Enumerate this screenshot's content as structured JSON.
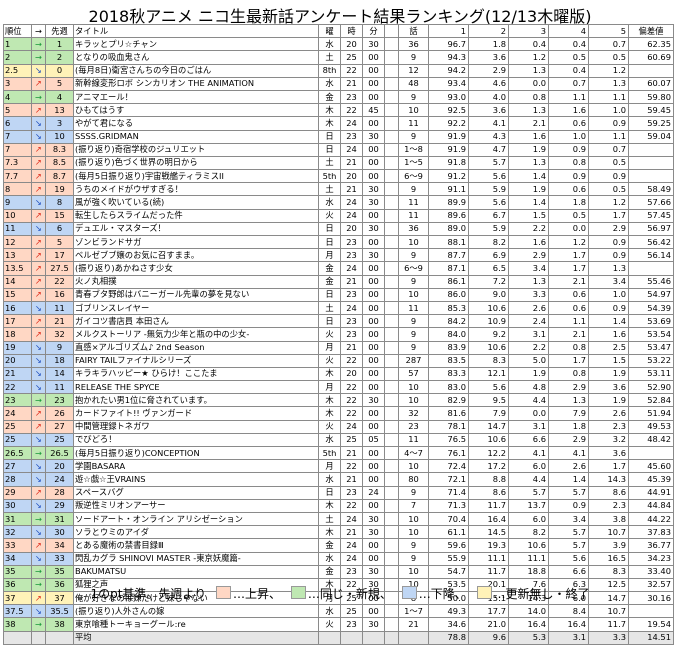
{
  "title": "2018秋アニメ ニコ生最新話アンケート結果ランキング(12/13木曜版)",
  "headers": [
    "順位",
    "→",
    "先週",
    "タイトル",
    "曜",
    "時",
    "分",
    "",
    "話",
    "1",
    "2",
    "3",
    "4",
    "5",
    "偏差値"
  ],
  "rows": [
    [
      "1",
      "→",
      "1",
      "キラッとプリ☆チャン",
      "水",
      "20",
      "30",
      "",
      "36",
      "96.7",
      "1.8",
      "0.4",
      "0.4",
      "0.7",
      "62.35",
      "same"
    ],
    [
      "2",
      "→",
      "2",
      "となりの吸血鬼さん",
      "土",
      "25",
      "00",
      "",
      "9",
      "94.3",
      "3.6",
      "1.2",
      "0.5",
      "0.5",
      "60.69",
      "same"
    ],
    [
      "2.5",
      "↘",
      "0",
      "(毎月8日)衛宮さんちの今日のごはん",
      "8th",
      "22",
      "00",
      "",
      "12",
      "94.2",
      "2.9",
      "1.3",
      "0.4",
      "1.2",
      "",
      "end"
    ],
    [
      "3",
      "↗",
      "5",
      "新幹線変形ロボ シンカリオン THE ANIMATION",
      "水",
      "21",
      "00",
      "",
      "48",
      "93.4",
      "4.6",
      "0.0",
      "0.7",
      "1.3",
      "60.07",
      "up"
    ],
    [
      "4",
      "→",
      "4",
      "アニマエール！",
      "金",
      "23",
      "00",
      "",
      "9",
      "93.0",
      "4.0",
      "0.8",
      "1.1",
      "1.1",
      "59.80",
      "same"
    ],
    [
      "5",
      "↗",
      "13",
      "ひもてはうす",
      "木",
      "22",
      "45",
      "",
      "10",
      "92.5",
      "3.6",
      "1.3",
      "1.6",
      "1.0",
      "59.45",
      "up"
    ],
    [
      "6",
      "↘",
      "3",
      "やがて君になる",
      "木",
      "24",
      "00",
      "",
      "11",
      "92.2",
      "4.1",
      "2.1",
      "0.6",
      "0.9",
      "59.25",
      "down"
    ],
    [
      "7",
      "↘",
      "10",
      "SSSS.GRIDMAN",
      "日",
      "23",
      "30",
      "",
      "9",
      "91.9",
      "4.3",
      "1.6",
      "1.0",
      "1.1",
      "59.04",
      "down"
    ],
    [
      "7",
      "↗",
      "8.3",
      "(振り返り)奇宿学校のジュリエット",
      "日",
      "24",
      "00",
      "",
      "1〜8",
      "91.9",
      "4.7",
      "1.9",
      "0.9",
      "0.7",
      "",
      "up"
    ],
    [
      "7.3",
      "↗",
      "8.5",
      "(振り返り)色づく世界の明日から",
      "土",
      "21",
      "00",
      "",
      "1〜5",
      "91.8",
      "5.7",
      "1.3",
      "0.8",
      "0.5",
      "",
      "up"
    ],
    [
      "7.7",
      "↗",
      "8.7",
      "(毎月5日振り返り)宇宙戦艦ティラミスII",
      "5th",
      "20",
      "00",
      "",
      "6〜9",
      "91.2",
      "5.6",
      "1.4",
      "0.9",
      "0.9",
      "",
      "up"
    ],
    [
      "8",
      "↗",
      "19",
      "うちのメイドがウザすぎる！",
      "土",
      "21",
      "30",
      "",
      "9",
      "91.1",
      "5.9",
      "1.9",
      "0.6",
      "0.5",
      "58.49",
      "up"
    ],
    [
      "9",
      "↘",
      "8",
      "風が強く吹いている(続)",
      "水",
      "24",
      "30",
      "",
      "11",
      "89.9",
      "5.6",
      "1.4",
      "1.8",
      "1.2",
      "57.66",
      "down"
    ],
    [
      "10",
      "↗",
      "15",
      "転生したらスライムだった件",
      "火",
      "24",
      "00",
      "",
      "11",
      "89.6",
      "6.7",
      "1.5",
      "0.5",
      "1.7",
      "57.45",
      "up"
    ],
    [
      "11",
      "↘",
      "6",
      "デュエル・マスターズ！",
      "日",
      "20",
      "30",
      "",
      "36",
      "89.0",
      "5.9",
      "2.2",
      "0.0",
      "2.9",
      "56.97",
      "down"
    ],
    [
      "12",
      "↗",
      "5",
      "ゾンビランドサガ",
      "日",
      "23",
      "00",
      "",
      "10",
      "88.1",
      "8.2",
      "1.6",
      "1.2",
      "0.9",
      "56.42",
      "up"
    ],
    [
      "13",
      "↗",
      "17",
      "ベルゼブブ嬢のお気に召すまま。",
      "月",
      "23",
      "30",
      "",
      "9",
      "87.7",
      "6.9",
      "2.9",
      "1.7",
      "0.9",
      "56.14",
      "up"
    ],
    [
      "13.5",
      "↗",
      "27.5",
      "(振り返り)あかねさす少女",
      "金",
      "24",
      "00",
      "",
      "6〜9",
      "87.1",
      "6.5",
      "3.4",
      "1.7",
      "1.3",
      "",
      "up"
    ],
    [
      "14",
      "↗",
      "22",
      "火ノ丸相撲",
      "金",
      "21",
      "00",
      "",
      "9",
      "86.1",
      "7.2",
      "1.3",
      "2.1",
      "3.4",
      "55.46",
      "up"
    ],
    [
      "15",
      "↗",
      "16",
      "青春ブタ野郎はバニーガール先輩の夢を見ない",
      "日",
      "23",
      "00",
      "",
      "10",
      "86.0",
      "9.0",
      "3.3",
      "0.6",
      "1.0",
      "54.97",
      "up"
    ],
    [
      "16",
      "↘",
      "11",
      "ゴブリンスレイヤー",
      "土",
      "24",
      "00",
      "",
      "11",
      "85.3",
      "10.6",
      "2.6",
      "0.6",
      "0.9",
      "54.39",
      "down"
    ],
    [
      "17",
      "↗",
      "21",
      "ガイコツ書店員 本田さん",
      "日",
      "23",
      "00",
      "",
      "9",
      "84.2",
      "10.9",
      "2.4",
      "1.1",
      "1.4",
      "53.69",
      "up"
    ],
    [
      "18",
      "↗",
      "32",
      "メルクストーリア -無気力少年と瓶の中の少女-",
      "火",
      "23",
      "00",
      "",
      "9",
      "84.0",
      "9.2",
      "3.1",
      "2.1",
      "1.6",
      "53.54",
      "up"
    ],
    [
      "19",
      "↘",
      "9",
      "直感×アルゴリズム♪ 2nd Season",
      "月",
      "21",
      "00",
      "",
      "9",
      "83.9",
      "10.6",
      "2.2",
      "0.8",
      "2.5",
      "53.47",
      "down"
    ],
    [
      "20",
      "↘",
      "18",
      "FAIRY TAILファイナルシリーズ",
      "火",
      "22",
      "00",
      "",
      "287",
      "83.5",
      "8.3",
      "5.0",
      "1.7",
      "1.5",
      "53.22",
      "down"
    ],
    [
      "21",
      "↘",
      "14",
      "キラキラハッピー★ ひらけ！ここたま",
      "木",
      "20",
      "00",
      "",
      "57",
      "83.3",
      "12.1",
      "1.9",
      "0.8",
      "1.9",
      "53.11",
      "down"
    ],
    [
      "22",
      "↘",
      "11",
      "RELEASE THE SPYCE",
      "月",
      "22",
      "00",
      "",
      "10",
      "83.0",
      "5.6",
      "4.8",
      "2.9",
      "3.6",
      "52.90",
      "down"
    ],
    [
      "23",
      "→",
      "23",
      "抱かれたい男1位に脅されています。",
      "木",
      "22",
      "30",
      "",
      "10",
      "82.9",
      "9.5",
      "4.4",
      "1.3",
      "1.9",
      "52.84",
      "same"
    ],
    [
      "24",
      "↗",
      "26",
      "カードファイト!! ヴァンガード",
      "木",
      "22",
      "00",
      "",
      "32",
      "81.6",
      "7.9",
      "0.0",
      "7.9",
      "2.6",
      "51.94",
      "up"
    ],
    [
      "25",
      "↗",
      "27",
      "中間管理録トネガワ",
      "火",
      "24",
      "00",
      "",
      "23",
      "78.1",
      "14.7",
      "3.1",
      "1.8",
      "2.3",
      "49.53",
      "up"
    ],
    [
      "25",
      "↘",
      "25",
      "でびどろ！",
      "水",
      "25",
      "05",
      "",
      "11",
      "76.5",
      "10.6",
      "6.6",
      "2.9",
      "3.2",
      "48.42",
      "down"
    ],
    [
      "26.5",
      "→",
      "26.5",
      "(毎月5日振り返り)CONCEPTION",
      "5th",
      "21",
      "00",
      "",
      "4〜7",
      "76.1",
      "12.2",
      "4.1",
      "4.1",
      "3.6",
      "",
      "same"
    ],
    [
      "27",
      "↘",
      "20",
      "学園BASARA",
      "月",
      "22",
      "00",
      "",
      "10",
      "72.4",
      "17.2",
      "6.0",
      "2.6",
      "1.7",
      "45.60",
      "down"
    ],
    [
      "28",
      "↘",
      "24",
      "遊☆戯☆王VRAINS",
      "水",
      "21",
      "00",
      "",
      "80",
      "72.1",
      "8.8",
      "4.4",
      "1.4",
      "14.3",
      "45.39",
      "down"
    ],
    [
      "29",
      "↗",
      "28",
      "スペースバグ",
      "日",
      "23",
      "24",
      "",
      "9",
      "71.4",
      "8.6",
      "5.7",
      "5.7",
      "8.6",
      "44.91",
      "up"
    ],
    [
      "30",
      "↘",
      "29",
      "叛逆性ミリオンアーサー",
      "木",
      "22",
      "00",
      "",
      "7",
      "71.3",
      "11.7",
      "13.7",
      "0.9",
      "2.3",
      "44.84",
      "down"
    ],
    [
      "31",
      "→",
      "31",
      "ソードアート・オンライン アリシゼーション",
      "土",
      "24",
      "30",
      "",
      "10",
      "70.4",
      "16.4",
      "6.0",
      "3.4",
      "3.8",
      "44.22",
      "same"
    ],
    [
      "32",
      "↘",
      "30",
      "ソラとウミのアイダ",
      "木",
      "21",
      "30",
      "",
      "10",
      "61.1",
      "14.5",
      "8.2",
      "5.7",
      "10.7",
      "37.83",
      "down"
    ],
    [
      "33",
      "↗",
      "34",
      "とある魔術の禁書目録Ⅲ",
      "金",
      "24",
      "00",
      "",
      "9",
      "59.6",
      "19.3",
      "10.6",
      "5.7",
      "3.9",
      "36.77",
      "up"
    ],
    [
      "34",
      "↘",
      "33",
      "閃乱カグラ SHINOVI MASTER -東京妖魔篇-",
      "水",
      "24",
      "00",
      "",
      "9",
      "55.9",
      "11.1",
      "11.1",
      "5.6",
      "16.5",
      "34.23",
      "down"
    ],
    [
      "35",
      "→",
      "35",
      "BAKUMATSU",
      "金",
      "23",
      "30",
      "",
      "10",
      "54.7",
      "11.7",
      "18.8",
      "6.6",
      "8.3",
      "33.40",
      "same"
    ],
    [
      "36",
      "→",
      "36",
      "狐狸之声",
      "木",
      "22",
      "30",
      "",
      "10",
      "53.5",
      "20.1",
      "7.6",
      "6.3",
      "12.5",
      "32.57",
      "same"
    ],
    [
      "37",
      "↗",
      "37",
      "俺が好きなのは妹だけど妹じゃない",
      "月",
      "25",
      "00",
      "",
      "8",
      "50.0",
      "15.1",
      "14.3",
      "6.0",
      "14.7",
      "30.16",
      "end"
    ],
    [
      "37.5",
      "↘",
      "35.5",
      "(振り返り)人外さんの嫁",
      "水",
      "25",
      "00",
      "",
      "1〜7",
      "49.3",
      "17.7",
      "14.0",
      "8.4",
      "10.7",
      "",
      "down"
    ],
    [
      "38",
      "→",
      "38",
      "東京喰種トーキョーグール:re",
      "火",
      "23",
      "30",
      "",
      "21",
      "34.6",
      "21.0",
      "16.4",
      "16.4",
      "11.7",
      "19.54",
      "same"
    ]
  ],
  "average": {
    "label": "平均",
    "v1": "78.8",
    "v2": "9.6",
    "v3": "5.3",
    "v4": "3.1",
    "v5": "3.3",
    "dev": "14.51"
  },
  "legend": {
    "prefix": "1のpt基準。先週より",
    "up": "…上昇、",
    "same": "…同じ・新規、",
    "down": "…下降、",
    "end": "…更新無し・終了"
  }
}
